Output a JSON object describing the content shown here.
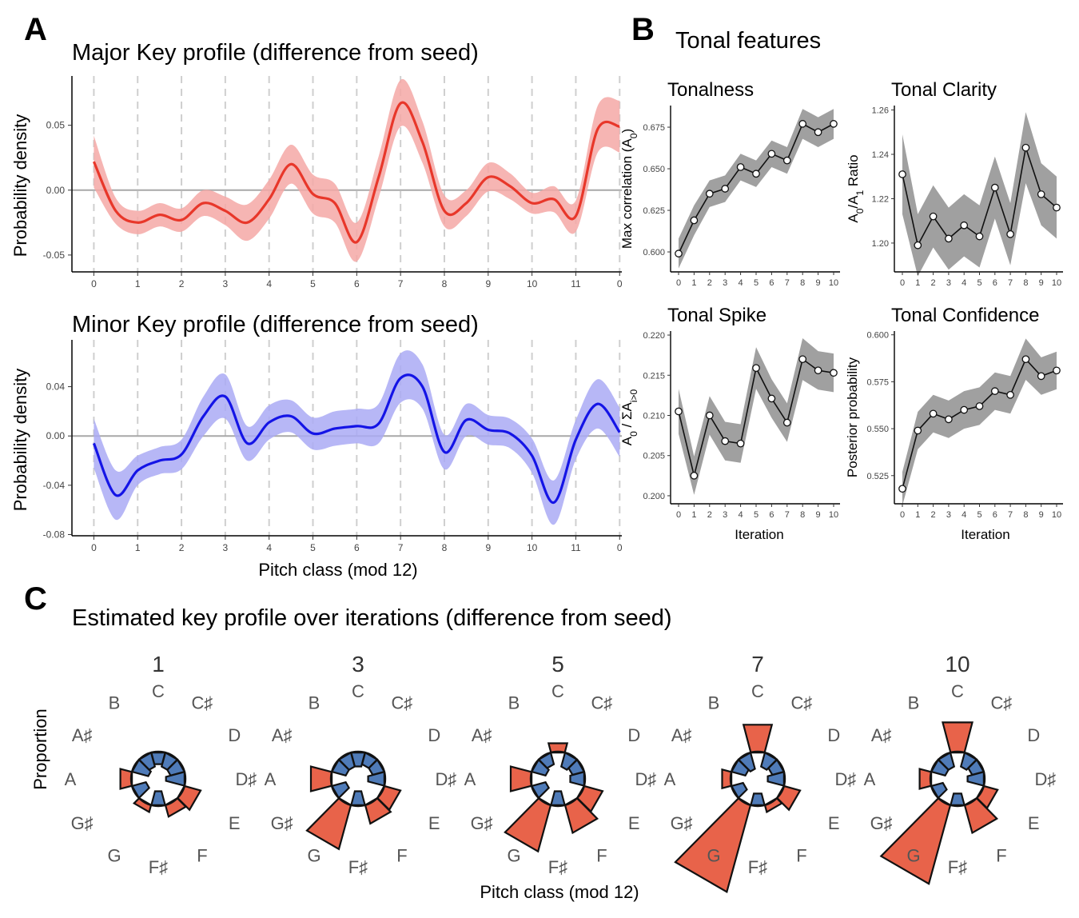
{
  "panels": {
    "A": {
      "letter": "A",
      "major_title": "Major Key profile (difference from seed)",
      "minor_title": "Minor Key profile (difference from seed)",
      "ylabel": "Probability density",
      "xlabel": "Pitch class (mod 12)"
    },
    "B": {
      "letter": "B",
      "title": "Tonal features",
      "xlabel": "Iteration"
    },
    "C": {
      "letter": "C",
      "title": "Estimated key profile over iterations (difference from seed)",
      "ylabel": "Proportion",
      "xlabel": "Pitch class (mod 12)"
    }
  },
  "colors": {
    "major_line": "#e8372a",
    "major_band": "#f4a8a6",
    "minor_line": "#1414e6",
    "minor_band": "#aaaaf5",
    "feature_band": "#a0a0a0",
    "positive": "#e8634a",
    "negative": "#4f7bb8"
  },
  "chart_data": [
    {
      "id": "major",
      "type": "line",
      "title": "Major Key profile (difference from seed)",
      "ylabel": "Probability density",
      "xlim": [
        -0.5,
        12.05
      ],
      "ylim": [
        -0.063,
        0.088
      ],
      "xticks": [
        0,
        1,
        2,
        3,
        4,
        5,
        6,
        7,
        8,
        9,
        10,
        11,
        12
      ],
      "xtick_labels": [
        "0",
        "1",
        "2",
        "3",
        "4",
        "5",
        "6",
        "7",
        "8",
        "9",
        "10",
        "11",
        "0"
      ],
      "yticks": [
        -0.05,
        0.0,
        0.05
      ],
      "ytick_labels": [
        "-0.05",
        "0.00",
        "0.05"
      ],
      "x": [
        0,
        0.5,
        1,
        1.5,
        2,
        2.5,
        3,
        3.5,
        4,
        4.5,
        5,
        5.5,
        6,
        6.5,
        7,
        7.5,
        8,
        8.5,
        9,
        9.5,
        10,
        10.5,
        11,
        11.5,
        12
      ],
      "y": [
        0.022,
        -0.016,
        -0.025,
        -0.019,
        -0.023,
        -0.01,
        -0.016,
        -0.025,
        -0.007,
        0.02,
        -0.003,
        -0.01,
        -0.04,
        0.01,
        0.067,
        0.037,
        -0.016,
        -0.01,
        0.01,
        0.003,
        -0.01,
        -0.007,
        -0.02,
        0.047,
        0.049
      ],
      "band": [
        0.02,
        0.01,
        0.009,
        0.009,
        0.009,
        0.01,
        0.011,
        0.014,
        0.015,
        0.015,
        0.015,
        0.015,
        0.015,
        0.016,
        0.018,
        0.016,
        0.012,
        0.01,
        0.011,
        0.01,
        0.008,
        0.01,
        0.012,
        0.018,
        0.02
      ]
    },
    {
      "id": "minor",
      "type": "line",
      "title": "Minor Key profile (difference from seed)",
      "ylabel": "Probability density",
      "xlabel": "Pitch class (mod 12)",
      "xlim": [
        -0.5,
        12.05
      ],
      "ylim": [
        -0.081,
        0.078
      ],
      "xticks": [
        0,
        1,
        2,
        3,
        4,
        5,
        6,
        7,
        8,
        9,
        10,
        11,
        12
      ],
      "xtick_labels": [
        "0",
        "1",
        "2",
        "3",
        "4",
        "5",
        "6",
        "7",
        "8",
        "9",
        "10",
        "11",
        "0"
      ],
      "yticks": [
        -0.08,
        -0.04,
        0.0,
        0.04
      ],
      "ytick_labels": [
        "-0.08",
        "-0.04",
        "0.00",
        "0.04"
      ],
      "x": [
        0,
        0.5,
        1,
        1.5,
        2,
        2.5,
        3,
        3.5,
        4,
        4.5,
        5,
        5.5,
        6,
        6.5,
        7,
        7.5,
        8,
        8.5,
        9,
        9.5,
        10,
        10.5,
        11,
        11.5,
        12
      ],
      "y": [
        -0.006,
        -0.048,
        -0.028,
        -0.02,
        -0.015,
        0.016,
        0.032,
        -0.006,
        0.011,
        0.016,
        0.002,
        0.006,
        0.008,
        0.01,
        0.047,
        0.04,
        -0.013,
        0.013,
        0.005,
        0.002,
        -0.016,
        -0.054,
        -0.003,
        0.026,
        0.003
      ],
      "band": [
        0.02,
        0.02,
        0.012,
        0.011,
        0.012,
        0.016,
        0.018,
        0.014,
        0.014,
        0.013,
        0.013,
        0.014,
        0.014,
        0.016,
        0.02,
        0.018,
        0.014,
        0.013,
        0.012,
        0.012,
        0.014,
        0.018,
        0.016,
        0.02,
        0.02
      ]
    },
    {
      "id": "tonalness",
      "type": "line",
      "title": "Tonalness",
      "ylabel": "Max correlation (A0)",
      "ylim": [
        0.588,
        0.688
      ],
      "yticks": [
        0.6,
        0.625,
        0.65,
        0.675
      ],
      "ytick_labels": [
        "0.600",
        "0.625",
        "0.650",
        "0.675"
      ],
      "x": [
        0,
        1,
        2,
        3,
        4,
        5,
        6,
        7,
        8,
        9,
        10
      ],
      "y": [
        0.599,
        0.619,
        0.635,
        0.638,
        0.651,
        0.647,
        0.659,
        0.655,
        0.677,
        0.672,
        0.677
      ],
      "band": [
        0.009,
        0.009,
        0.008,
        0.008,
        0.008,
        0.008,
        0.008,
        0.008,
        0.009,
        0.009,
        0.009
      ]
    },
    {
      "id": "tonal_clarity",
      "type": "line",
      "title": "Tonal Clarity",
      "ylabel": "A0/A1 Ratio",
      "ylim": [
        1.187,
        1.262
      ],
      "yticks": [
        1.2,
        1.22,
        1.24,
        1.26
      ],
      "ytick_labels": [
        "1.20",
        "1.22",
        "1.24",
        "1.26"
      ],
      "x": [
        0,
        1,
        2,
        3,
        4,
        5,
        6,
        7,
        8,
        9,
        10
      ],
      "y": [
        1.231,
        1.199,
        1.212,
        1.202,
        1.208,
        1.203,
        1.225,
        1.204,
        1.243,
        1.222,
        1.216
      ],
      "band": [
        0.018,
        0.014,
        0.014,
        0.014,
        0.014,
        0.014,
        0.014,
        0.014,
        0.016,
        0.014,
        0.014
      ]
    },
    {
      "id": "tonal_spike",
      "type": "line",
      "title": "Tonal Spike",
      "ylabel": "A0 / ΣAi>0",
      "xlabel": "Iteration",
      "ylim": [
        0.199,
        0.2205
      ],
      "yticks": [
        0.2,
        0.205,
        0.21,
        0.215,
        0.22
      ],
      "ytick_labels": [
        "0.200",
        "0.205",
        "0.210",
        "0.215",
        "0.220"
      ],
      "x": [
        0,
        1,
        2,
        3,
        4,
        5,
        6,
        7,
        8,
        9,
        10
      ],
      "y": [
        0.2105,
        0.2025,
        0.21,
        0.2068,
        0.2065,
        0.2159,
        0.2121,
        0.2091,
        0.217,
        0.2156,
        0.2153
      ],
      "band": [
        0.0028,
        0.0024,
        0.0024,
        0.0024,
        0.0024,
        0.0026,
        0.0024,
        0.0024,
        0.0026,
        0.0024,
        0.0024
      ]
    },
    {
      "id": "tonal_confidence",
      "type": "line",
      "title": "Tonal Confidence",
      "ylabel": "Posterior probability",
      "xlabel": "Iteration",
      "ylim": [
        0.51,
        0.602
      ],
      "yticks": [
        0.525,
        0.55,
        0.575,
        0.6
      ],
      "ytick_labels": [
        "0.525",
        "0.550",
        "0.575",
        "0.600"
      ],
      "x": [
        0,
        1,
        2,
        3,
        4,
        5,
        6,
        7,
        8,
        9,
        10
      ],
      "y": [
        0.518,
        0.549,
        0.558,
        0.555,
        0.56,
        0.562,
        0.57,
        0.568,
        0.587,
        0.578,
        0.581
      ],
      "band": [
        0.009,
        0.01,
        0.01,
        0.01,
        0.01,
        0.01,
        0.01,
        0.01,
        0.011,
        0.01,
        0.01
      ]
    },
    {
      "id": "polar_profiles",
      "type": "bar",
      "polar": true,
      "categories": [
        "C",
        "C♯",
        "D",
        "D♯",
        "E",
        "F",
        "F♯",
        "G",
        "G♯",
        "A",
        "A♯",
        "B"
      ],
      "panels": [
        {
          "label": "1",
          "values": [
            -0.01,
            -0.012,
            -0.012,
            -0.016,
            0.014,
            0.01,
            -0.012,
            0.006,
            -0.012,
            0.01,
            -0.014,
            -0.012
          ]
        },
        {
          "label": "3",
          "values": [
            -0.012,
            -0.01,
            -0.01,
            -0.014,
            0.014,
            0.016,
            -0.012,
            0.038,
            -0.012,
            0.018,
            -0.012,
            -0.012
          ]
        },
        {
          "label": "5",
          "values": [
            0.008,
            -0.012,
            -0.01,
            -0.012,
            0.016,
            0.024,
            -0.012,
            0.04,
            -0.012,
            0.018,
            -0.012,
            -0.01
          ]
        },
        {
          "label": "7",
          "values": [
            0.024,
            -0.012,
            -0.01,
            -0.014,
            0.014,
            0.006,
            -0.01,
            0.075,
            -0.01,
            0.008,
            -0.012,
            -0.014
          ]
        },
        {
          "label": "10",
          "values": [
            0.026,
            -0.012,
            -0.01,
            -0.014,
            0.012,
            0.024,
            -0.01,
            0.068,
            -0.01,
            0.01,
            -0.012,
            -0.012
          ]
        }
      ]
    }
  ]
}
